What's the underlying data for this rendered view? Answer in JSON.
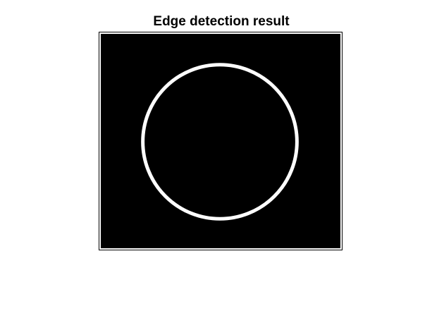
{
  "figure": {
    "title": "Edge detection result"
  },
  "image": {
    "description_colors": {
      "background": "#000000",
      "edge": "#ffffff"
    }
  }
}
